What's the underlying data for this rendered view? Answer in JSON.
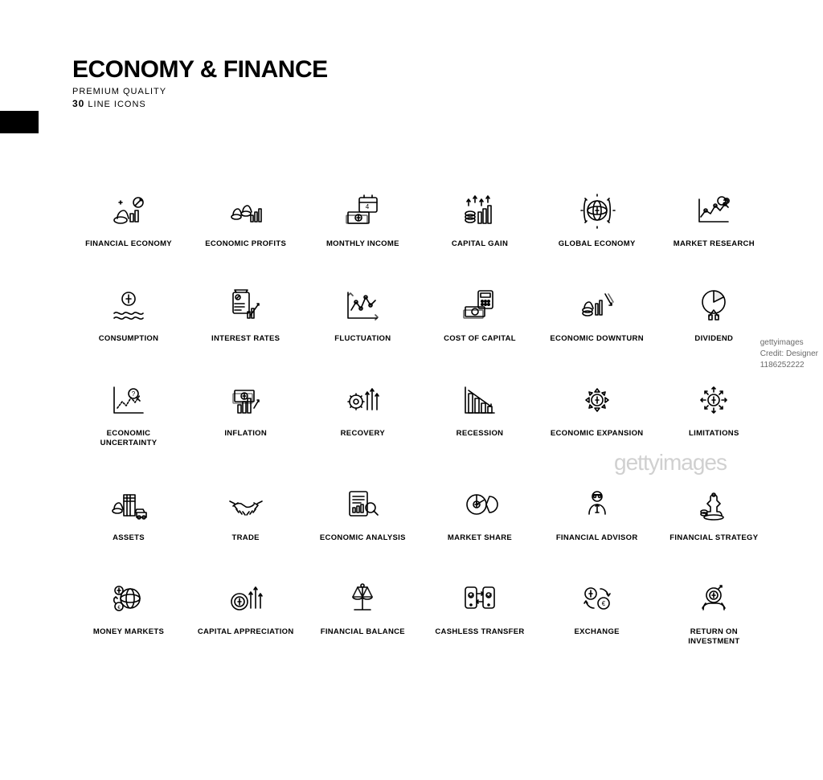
{
  "header": {
    "title": "ECONOMY & FINANCE",
    "subtitle": "PREMIUM QUALITY",
    "count_num": "30",
    "count_suffix": " LINE ICONS"
  },
  "styling": {
    "background_color": "#ffffff",
    "icon_stroke_color": "#000000",
    "icon_stroke_width": 1.6,
    "title_fontsize": 30,
    "title_fontweight": 800,
    "subtitle_fontsize": 11,
    "label_fontsize": 9.5,
    "label_fontweight": 700,
    "grid_columns": 6,
    "grid_rows": 5,
    "side_block_color": "#000000"
  },
  "icons": [
    {
      "id": "financial-economy",
      "label": "FINANCIAL ECONOMY"
    },
    {
      "id": "economic-profits",
      "label": "ECONOMIC PROFITS"
    },
    {
      "id": "monthly-income",
      "label": "MONTHLY INCOME"
    },
    {
      "id": "capital-gain",
      "label": "CAPITAL GAIN"
    },
    {
      "id": "global-economy",
      "label": "GLOBAL ECONOMY"
    },
    {
      "id": "market-research",
      "label": "MARKET RESEARCH"
    },
    {
      "id": "consumption",
      "label": "CONSUMPTION"
    },
    {
      "id": "interest-rates",
      "label": "INTEREST RATES"
    },
    {
      "id": "fluctuation",
      "label": "FLUCTUATION"
    },
    {
      "id": "cost-of-capital",
      "label": "COST OF CAPITAL"
    },
    {
      "id": "economic-downturn",
      "label": "ECONOMIC DOWNTURN"
    },
    {
      "id": "dividend",
      "label": "DIVIDEND"
    },
    {
      "id": "economic-uncertainty",
      "label": "ECONOMIC UNCERTAINTY"
    },
    {
      "id": "inflation",
      "label": "INFLATION"
    },
    {
      "id": "recovery",
      "label": "RECOVERY"
    },
    {
      "id": "recession",
      "label": "RECESSION"
    },
    {
      "id": "economic-expansion",
      "label": "ECONOMIC EXPANSION"
    },
    {
      "id": "limitations",
      "label": "LIMITATIONS"
    },
    {
      "id": "assets",
      "label": "ASSETS"
    },
    {
      "id": "trade",
      "label": "TRADE"
    },
    {
      "id": "economic-analysis",
      "label": "ECONOMIC ANALYSIS"
    },
    {
      "id": "market-share",
      "label": "MARKET SHARE"
    },
    {
      "id": "financial-advisor",
      "label": "FINANCIAL ADVISOR"
    },
    {
      "id": "financial-strategy",
      "label": "FINANCIAL STRATEGY"
    },
    {
      "id": "money-markets",
      "label": "MONEY MARKETS"
    },
    {
      "id": "capital-appreciation",
      "label": "CAPITAL APPRECIATION"
    },
    {
      "id": "financial-balance",
      "label": "FINANCIAL BALANCE"
    },
    {
      "id": "cashless-transfer",
      "label": "CASHLESS TRANSFER"
    },
    {
      "id": "exchange",
      "label": "EXCHANGE"
    },
    {
      "id": "return-on-investment",
      "label": "RETURN ON INVESTMENT"
    }
  ],
  "watermark": {
    "main": "gettyimages",
    "credit_lines": [
      "gettyimages",
      "Credit: Designer",
      "1186252222"
    ]
  }
}
